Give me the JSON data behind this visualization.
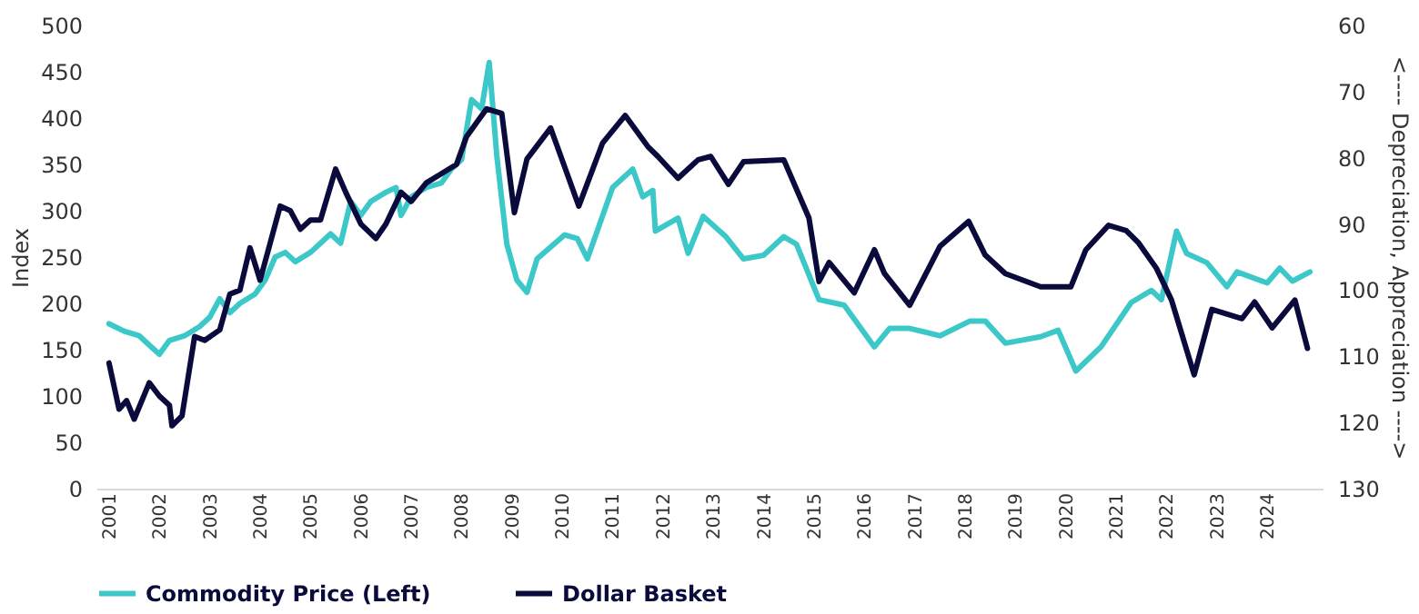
{
  "chart_data": {
    "type": "line",
    "ylabel": "Index",
    "y2label": "<---- Depreciation, Appreciation ---->",
    "xlim": [
      2000.75,
      2025.1
    ],
    "xticks": [
      2001,
      2002,
      2003,
      2004,
      2005,
      2006,
      2007,
      2008,
      2009,
      2010,
      2011,
      2012,
      2013,
      2014,
      2015,
      2016,
      2017,
      2018,
      2019,
      2020,
      2021,
      2022,
      2023,
      2024
    ],
    "ylim": [
      0,
      500
    ],
    "yticks": [
      0,
      50,
      100,
      150,
      200,
      250,
      300,
      350,
      400,
      450,
      500
    ],
    "y2lim": [
      130,
      60
    ],
    "y2ticks": [
      60,
      70,
      80,
      90,
      100,
      110,
      120,
      130
    ],
    "grid": false,
    "legend": "bottom",
    "marker": "none",
    "line_style": "solid",
    "series": [
      {
        "name": "Commodity Price (Left)",
        "color": "#3cc8c8",
        "x": [
          2001.0,
          2001.3,
          2001.6,
          2001.9,
          2002.0,
          2002.2,
          2002.5,
          2002.8,
          2003.0,
          2003.2,
          2003.4,
          2003.6,
          2003.9,
          2004.1,
          2004.3,
          2004.5,
          2004.7,
          2005.0,
          2005.2,
          2005.4,
          2005.6,
          2005.8,
          2006.0,
          2006.2,
          2006.5,
          2006.7,
          2006.8,
          2007.0,
          2007.3,
          2007.6,
          2007.8,
          2008.0,
          2008.2,
          2008.4,
          2008.55,
          2008.7,
          2008.9,
          2009.1,
          2009.3,
          2009.5,
          2010.05,
          2010.3,
          2010.5,
          2011.0,
          2011.4,
          2011.6,
          2011.8,
          2011.85,
          2012.3,
          2012.5,
          2012.8,
          2013.25,
          2013.6,
          2014.0,
          2014.4,
          2014.65,
          2015.1,
          2015.6,
          2016.2,
          2016.5,
          2016.9,
          2017.5,
          2018.1,
          2018.4,
          2018.8,
          2019.5,
          2019.85,
          2020.2,
          2020.7,
          2021.3,
          2021.7,
          2021.9,
          2022.2,
          2022.4,
          2022.8,
          2023.2,
          2023.4,
          2024.0,
          2024.25,
          2024.5,
          2024.85
        ],
        "values": [
          178,
          170,
          165,
          150,
          145,
          160,
          165,
          175,
          185,
          205,
          190,
          200,
          210,
          225,
          250,
          255,
          245,
          255,
          265,
          275,
          265,
          310,
          295,
          310,
          320,
          325,
          295,
          315,
          325,
          330,
          345,
          355,
          420,
          410,
          460,
          360,
          264,
          225,
          212,
          248,
          274,
          270,
          248,
          325,
          345,
          315,
          322,
          278,
          292,
          254,
          294,
          272,
          248,
          252,
          272,
          264,
          204,
          198,
          153,
          173,
          173,
          165,
          181,
          181,
          157,
          164,
          171,
          127,
          153,
          201,
          214,
          204,
          278,
          254,
          244,
          218,
          234,
          222,
          238,
          224,
          234
        ]
      },
      {
        "name": "Dollar Basket",
        "color": "#0a0a3c",
        "axis": "y2",
        "x": [
          2001.0,
          2001.2,
          2001.35,
          2001.5,
          2001.8,
          2002.0,
          2002.2,
          2002.25,
          2002.45,
          2002.7,
          2002.9,
          2003.2,
          2003.4,
          2003.6,
          2003.8,
          2004.0,
          2004.2,
          2004.4,
          2004.6,
          2004.8,
          2005.0,
          2005.2,
          2005.5,
          2005.7,
          2006.0,
          2006.3,
          2006.5,
          2006.8,
          2007.0,
          2007.3,
          2007.6,
          2007.9,
          2008.1,
          2008.3,
          2008.5,
          2008.8,
          2009.05,
          2009.3,
          2009.77,
          2010.33,
          2010.8,
          2011.25,
          2011.7,
          2011.9,
          2012.3,
          2012.7,
          2012.95,
          2013.3,
          2013.6,
          2014.4,
          2014.9,
          2015.1,
          2015.3,
          2015.8,
          2016.2,
          2016.4,
          2016.9,
          2017.5,
          2018.07,
          2018.4,
          2018.8,
          2019.5,
          2020.1,
          2020.4,
          2020.85,
          2021.2,
          2021.45,
          2021.8,
          2022.1,
          2022.55,
          2022.9,
          2023.5,
          2023.75,
          2024.1,
          2024.55,
          2024.8
        ],
        "values": [
          111,
          118,
          116.7,
          119.5,
          114,
          116,
          117.4,
          120.5,
          119,
          107,
          107.6,
          106,
          100.6,
          100,
          93.6,
          98.5,
          92.9,
          87.3,
          88,
          90.8,
          89.4,
          89.4,
          81.7,
          85.2,
          90,
          92.2,
          90,
          85.2,
          86.6,
          83.8,
          82.4,
          81,
          76.8,
          74.7,
          72.6,
          73.3,
          88.3,
          80.2,
          75.5,
          87.3,
          77.8,
          73.6,
          78.3,
          79.8,
          83.1,
          80.3,
          79.8,
          84,
          80.6,
          80.3,
          89.1,
          98.7,
          95.8,
          100.4,
          93.9,
          97.5,
          102.3,
          93.4,
          89.6,
          94.7,
          97.5,
          99.5,
          99.5,
          93.9,
          90.2,
          91,
          92.9,
          96.7,
          101.5,
          112.8,
          102.9,
          104.3,
          101.8,
          105.7,
          101.5,
          108.8
        ]
      }
    ]
  }
}
